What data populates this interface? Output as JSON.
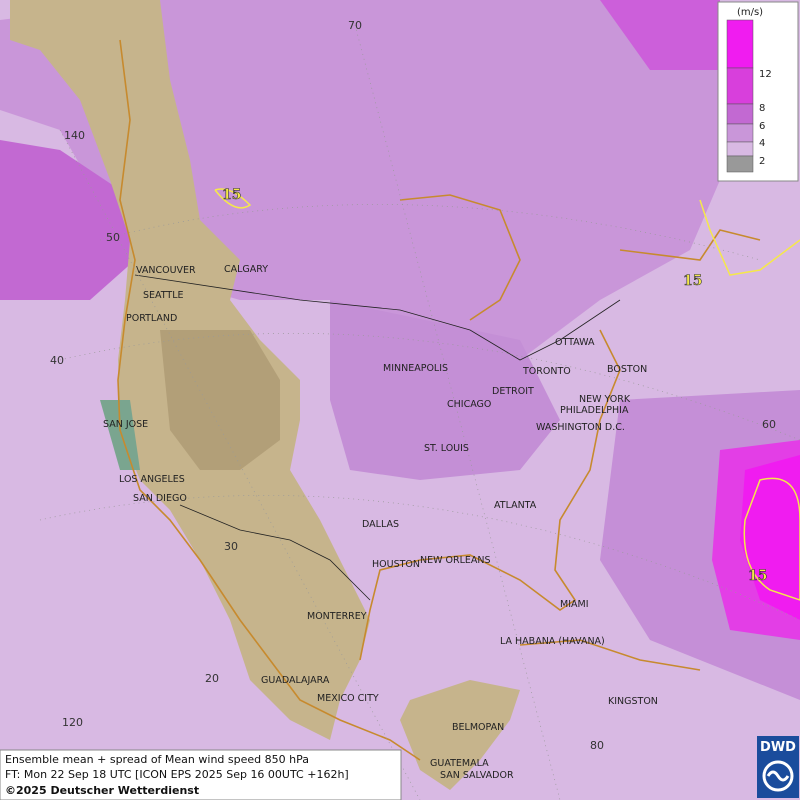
{
  "map": {
    "cities": [
      "VANCOUVER",
      "CALGARY",
      "SEATTLE",
      "PORTLAND",
      "SAN JOSE",
      "LOS ANGELES",
      "SAN DIEGO",
      "MINNEAPOLIS",
      "CHICAGO",
      "DETROIT",
      "TORONTO",
      "OTTAWA",
      "BOSTON",
      "NEW YORK",
      "PHILADELPHIA",
      "WASHINGTON D.C.",
      "ST. LOUIS",
      "ATLANTA",
      "DALLAS",
      "HOUSTON",
      "NEW ORLEANS",
      "MIAMI",
      "MONTERREY",
      "LA HABANA (HAVANA)",
      "GUADALAJARA",
      "MEXICO CITY",
      "KINGSTON",
      "BELMOPAN",
      "GUATEMALA",
      "SAN SALVADOR"
    ],
    "grid_labels": [
      70,
      140,
      50,
      40,
      60,
      30,
      20,
      120,
      80
    ],
    "contour_labels": [
      15,
      15,
      15
    ],
    "legend": {
      "unit": "(m/s)",
      "ticks": [
        2,
        4,
        6,
        8,
        12
      ]
    },
    "footer": [
      "Ensemble mean + spread of Mean wind speed 850 hPa",
      "FT: Mon 22 Sep 18 UTC [ICON EPS 2025 Sep 16 00UTC +162h]",
      "©2025 Deutscher Wetterdienst"
    ],
    "logo": "DWD"
  }
}
